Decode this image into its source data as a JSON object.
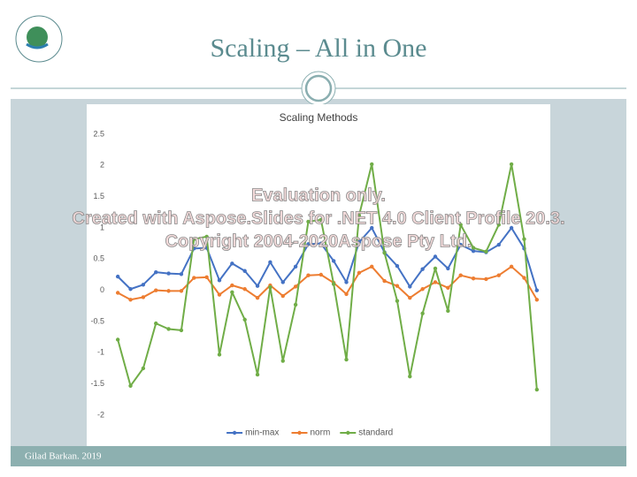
{
  "slide": {
    "title": "Scaling – All in One",
    "footer": "Gilad Barkan. 2019",
    "watermark": [
      "Evaluation only.",
      "Created with Aspose.Slides for .NET 4.0 Client Profile 20.3.",
      "Copyright 2004-2020Aspose Pty Ltd."
    ]
  },
  "chart_data": {
    "type": "line",
    "title": "Scaling Methods",
    "categories": [
      null,
      null,
      null,
      null,
      null,
      null,
      null,
      null,
      null,
      null,
      null,
      null,
      null,
      null,
      null,
      null,
      null,
      null,
      null,
      null,
      null,
      null,
      null,
      null,
      null,
      null,
      null,
      null,
      null,
      null,
      null,
      null,
      null,
      null
    ],
    "series": [
      {
        "name": "min-max",
        "color": "#4472c4",
        "values": [
          0.22,
          0.02,
          0.09,
          0.29,
          0.27,
          0.26,
          0.67,
          0.68,
          0.16,
          0.43,
          0.31,
          0.07,
          0.45,
          0.13,
          0.38,
          0.74,
          0.75,
          0.47,
          0.13,
          0.77,
          1.0,
          0.61,
          0.39,
          0.06,
          0.34,
          0.54,
          0.35,
          0.73,
          0.63,
          0.61,
          0.73,
          1.0,
          0.67,
          0.0
        ]
      },
      {
        "name": "norm",
        "color": "#ed7d31",
        "values": [
          -0.04,
          -0.15,
          -0.11,
          0.0,
          -0.01,
          -0.01,
          0.2,
          0.21,
          -0.07,
          0.08,
          0.02,
          -0.12,
          0.08,
          -0.09,
          0.06,
          0.24,
          0.25,
          0.12,
          -0.06,
          0.28,
          0.38,
          0.15,
          0.07,
          -0.12,
          0.02,
          0.13,
          0.04,
          0.24,
          0.19,
          0.18,
          0.24,
          0.38,
          0.2,
          -0.15
        ]
      },
      {
        "name": "standard",
        "color": "#70ad47",
        "values": [
          -0.79,
          -1.53,
          -1.25,
          -0.53,
          -0.62,
          -0.64,
          0.82,
          0.86,
          -1.03,
          -0.03,
          -0.47,
          -1.35,
          0.05,
          -1.13,
          -0.23,
          1.1,
          1.13,
          0.1,
          -1.11,
          1.2,
          2.02,
          0.6,
          -0.17,
          -1.38,
          -0.37,
          0.35,
          -0.33,
          1.05,
          0.68,
          0.62,
          1.05,
          2.02,
          0.82,
          -1.59
        ]
      }
    ],
    "ylim": [
      -2,
      2.5
    ],
    "yticks": [
      -2,
      -1.5,
      -1,
      -0.5,
      0,
      0.5,
      1,
      1.5,
      2,
      2.5
    ],
    "grid": false,
    "legend": "bottom"
  }
}
